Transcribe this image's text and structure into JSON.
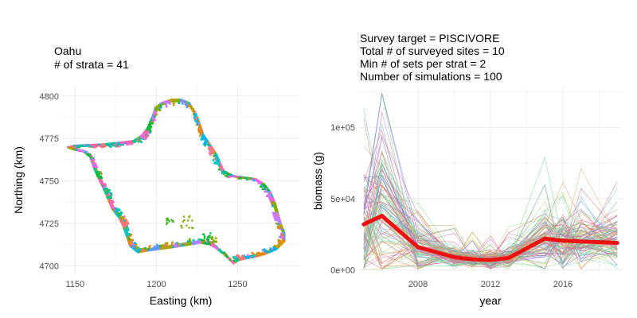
{
  "chart_data": [
    {
      "type": "raster-map",
      "title_lines": [
        "Oahu",
        "# of strata = 41"
      ],
      "xlabel": "Easting (km)",
      "ylabel": "Northing (km)",
      "xlim": [
        1142,
        1288
      ],
      "ylim": [
        4695,
        4806
      ],
      "xticks": [
        1150,
        1200,
        1250
      ],
      "yticks": [
        4700,
        4725,
        4750,
        4775,
        4800
      ],
      "grid": true,
      "legend": "none",
      "palette": [
        "#F8766D",
        "#DE8C00",
        "#B79F00",
        "#7CAE00",
        "#00BA38",
        "#00C08B",
        "#00BFC4",
        "#00B4F0",
        "#619CFF",
        "#C77CFF",
        "#F564E3",
        "#FF64B0"
      ]
    },
    {
      "type": "line",
      "title_lines": [
        "Survey target = PISCIVORE",
        "Total # of surveyed sites = 10",
        "Min # of sets per strat = 2",
        "Number of simulations = 100"
      ],
      "xlabel": "year",
      "ylabel": "biomass (g)",
      "xlim": [
        2004.7,
        2019.3
      ],
      "ylim": [
        -3000,
        128000
      ],
      "xticks": [
        2008,
        2012,
        2016
      ],
      "yticks": [
        0,
        50000,
        100000
      ],
      "ytick_labels": [
        "0e+00",
        "5e+04",
        "1e+05"
      ],
      "grid": true,
      "legend": "none",
      "years": [
        2005,
        2006,
        2008,
        2010,
        2011,
        2012,
        2013,
        2015,
        2016,
        2017,
        2019
      ],
      "simulations": 100,
      "mean_series": {
        "color": "#EE1111",
        "x": [
          2005,
          2006,
          2008,
          2010,
          2011,
          2012,
          2013,
          2015,
          2016,
          2017,
          2019
        ],
        "y": [
          32000,
          38000,
          16000,
          9000,
          7500,
          7000,
          8500,
          22000,
          20500,
          20000,
          19000
        ]
      },
      "series_range_note": "individual simulation lines span roughly 0 to 125000 per year"
    }
  ]
}
